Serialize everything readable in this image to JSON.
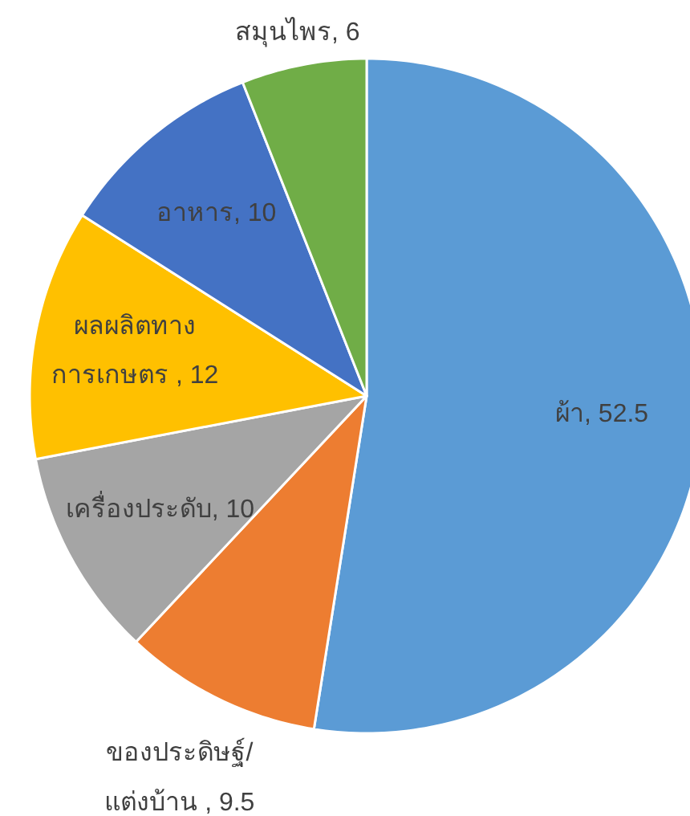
{
  "chart_data": {
    "type": "pie",
    "categories": [
      "ผ้า, 52.5",
      "ของประดิษฐ์/\nแต่งบ้าน , 9.5",
      "เครื่องประดับ, 10",
      "ผลผลิตทาง\nการเกษตร , 12",
      "อาหาร, 10",
      "สมุนไพร, 6"
    ],
    "values": [
      52.5,
      9.5,
      10,
      12,
      10,
      6
    ],
    "colors": [
      "#5b9bd5",
      "#ed7d31",
      "#a5a5a5",
      "#ffc000",
      "#4472c4",
      "#70ad47"
    ]
  }
}
